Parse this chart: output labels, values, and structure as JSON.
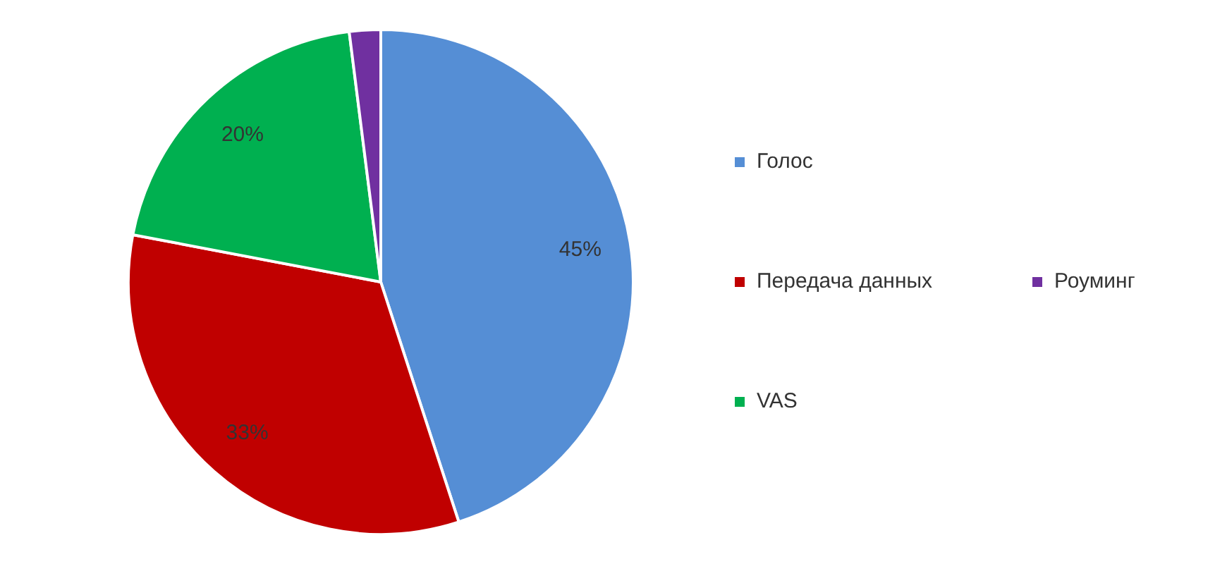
{
  "chart_data": {
    "type": "pie",
    "categories": [
      "Голос",
      "Передача данных",
      "VAS",
      "Роуминг"
    ],
    "values": [
      45,
      33,
      20,
      2
    ],
    "colors": [
      "#558ed5",
      "#c00000",
      "#00b050",
      "#7030a0"
    ],
    "value_labels": [
      "45%",
      "33%",
      "20%",
      null
    ],
    "legend": "right"
  }
}
